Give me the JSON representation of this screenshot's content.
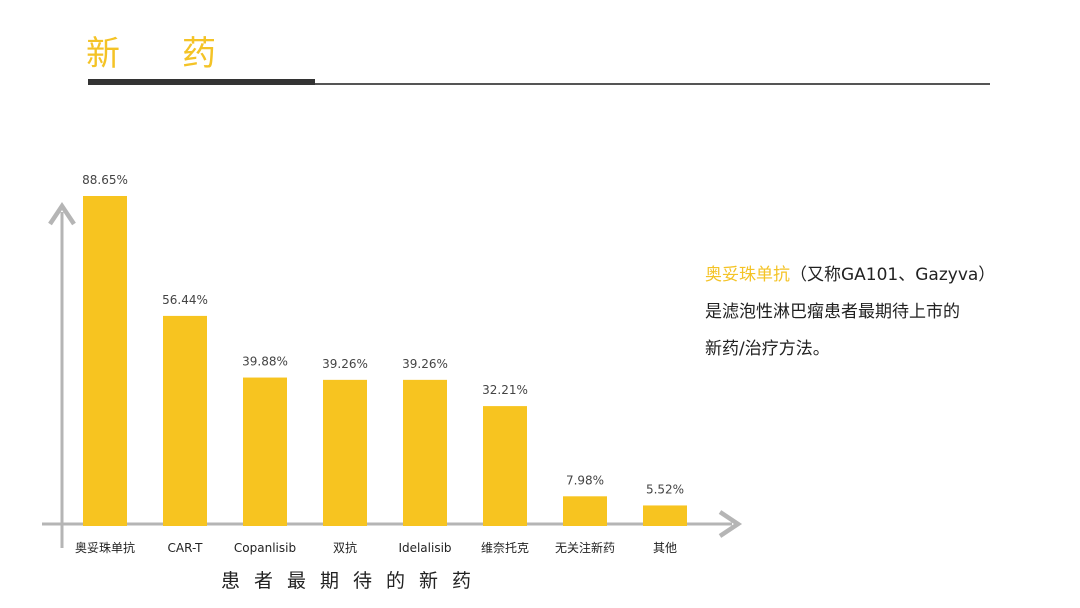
{
  "page_title": "新药",
  "side_note": {
    "highlight": "奥妥珠单抗",
    "line1_rest": "（又称GA101、Gazyva）",
    "line2": "是滤泡性淋巴瘤患者最期待上市的",
    "line3": "新药/治疗方法。"
  },
  "colors": {
    "accent": "#f4c326",
    "bar": "#f7c420",
    "axis": "#b5b5b5",
    "text": "#222222"
  },
  "chart_data": {
    "type": "bar",
    "categories": [
      "奥妥珠单抗",
      "CAR-T",
      "Copanlisib",
      "双抗",
      "Idelalisib",
      "维奈托克",
      "无关注新药",
      "其他"
    ],
    "values": [
      88.65,
      56.44,
      39.88,
      39.26,
      39.26,
      32.21,
      7.98,
      5.52
    ],
    "value_labels": [
      "88.65%",
      "56.44%",
      "39.88%",
      "39.26%",
      "39.26%",
      "32.21%",
      "7.98%",
      "5.52%"
    ],
    "xlabel": "患者最期待的新药",
    "ylabel": "",
    "ylim": [
      0,
      100
    ],
    "grid": false,
    "legend": "none"
  }
}
